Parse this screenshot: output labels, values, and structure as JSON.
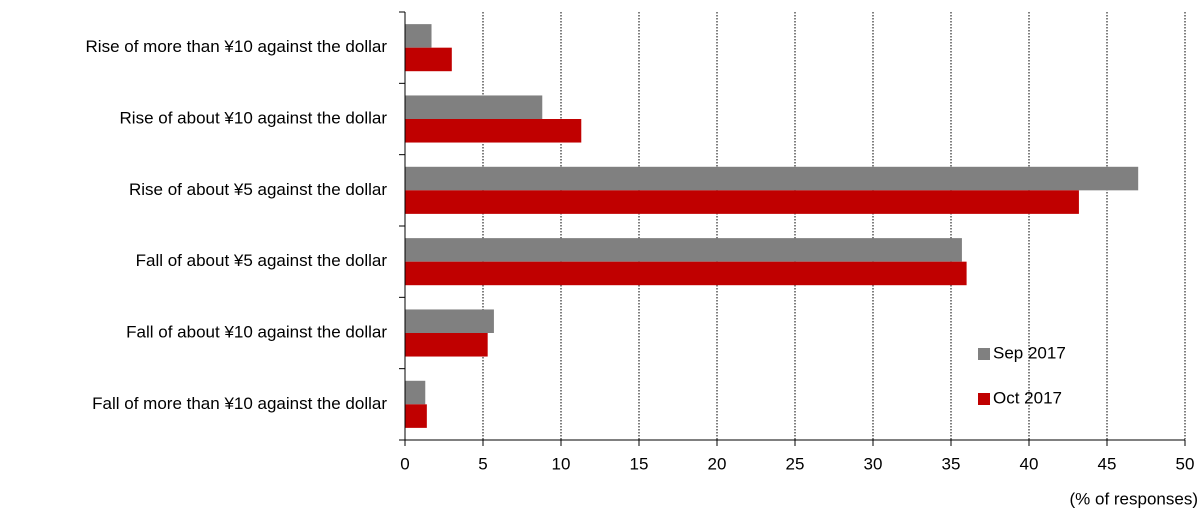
{
  "chart_data": {
    "type": "bar",
    "orientation": "horizontal",
    "categories": [
      "Rise of more than ¥10 against the dollar",
      "Rise of about ¥10 against the dollar",
      "Rise of about ¥5 against the dollar",
      "Fall of about ¥5 against the dollar",
      "Fall of about ¥10 against the dollar",
      "Fall of more than ¥10 against the dollar"
    ],
    "series": [
      {
        "name": "Sep 2017",
        "color": "#808080",
        "values": [
          1.7,
          8.8,
          47.0,
          35.7,
          5.7,
          1.3
        ]
      },
      {
        "name": "Oct 2017",
        "color": "#c00000",
        "values": [
          3.0,
          11.3,
          43.2,
          36.0,
          5.3,
          1.4
        ]
      }
    ],
    "xlim": [
      0,
      50
    ],
    "xticks": [
      0,
      5,
      10,
      15,
      20,
      25,
      30,
      35,
      40,
      45,
      50
    ],
    "x_label": "(% of responses)",
    "grid": true,
    "legend": "lower right"
  }
}
